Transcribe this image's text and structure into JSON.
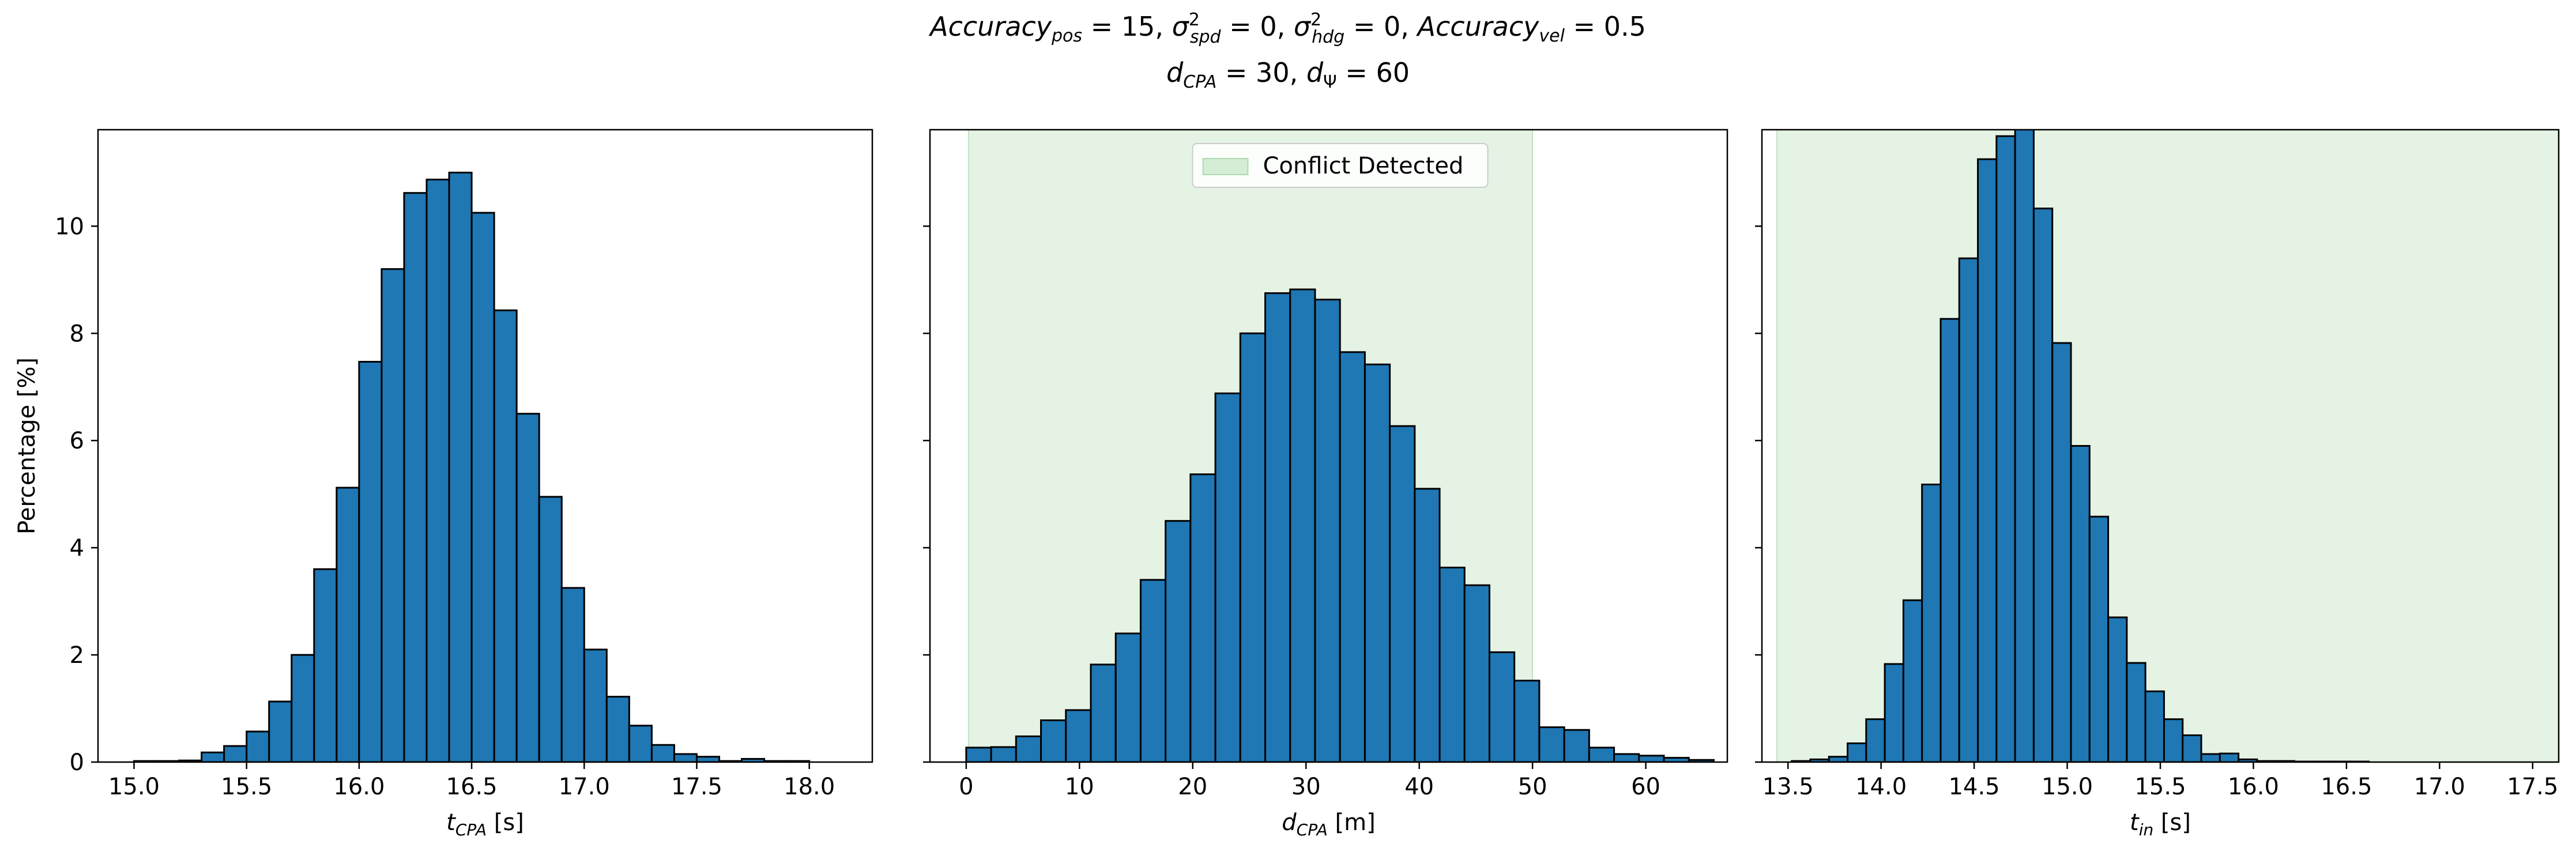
{
  "figure": {
    "title_line1": "Accuracy_pos = 15, σ²_spd = 0, σ²_hdg = 0, Accuracy_vel = 0.5",
    "title_line2": "d_CPA = 30, d_Ψ = 60"
  },
  "chart_data": [
    {
      "type": "bar",
      "subtype": "histogram",
      "xlabel": "t_CPA [s]",
      "ylabel": "Percentage [%]",
      "xlim": [
        14.84,
        18.28
      ],
      "ylim": [
        0,
        11.8
      ],
      "xticks": [
        15.0,
        15.5,
        16.0,
        16.5,
        17.0,
        17.5,
        18.0
      ],
      "xtick_labels": [
        "15.0",
        "15.5",
        "16.0",
        "16.5",
        "17.0",
        "17.5",
        "18.0"
      ],
      "yticks": [
        0,
        2,
        4,
        6,
        8,
        10
      ],
      "ytick_labels": [
        "0",
        "2",
        "4",
        "6",
        "8",
        "10"
      ],
      "bar_color": "#1f77b4",
      "edge_color": "#000000",
      "bin_edges": [
        15.0,
        15.1,
        15.2,
        15.3,
        15.4,
        15.5,
        15.6,
        15.7,
        15.8,
        15.9,
        16.0,
        16.1,
        16.2,
        16.3,
        16.4,
        16.5,
        16.6,
        16.7,
        16.8,
        16.9,
        17.0,
        17.1,
        17.2,
        17.3,
        17.4,
        17.5,
        17.6,
        17.7,
        17.8,
        17.9,
        18.0,
        18.1
      ],
      "values": [
        0.02,
        0.02,
        0.03,
        0.18,
        0.3,
        0.57,
        1.13,
        2.0,
        3.6,
        5.12,
        7.47,
        9.2,
        10.62,
        10.87,
        11.0,
        10.25,
        8.43,
        6.5,
        4.95,
        3.25,
        2.1,
        1.22,
        0.68,
        0.32,
        0.15,
        0.1,
        0.02,
        0.06,
        0.02,
        0.02,
        0.0
      ],
      "shaded_region": null,
      "legend": null
    },
    {
      "type": "bar",
      "subtype": "histogram",
      "xlabel": "d_CPA [m]",
      "ylabel": "",
      "xlim": [
        -3.2,
        67.2
      ],
      "ylim": [
        0,
        11.8
      ],
      "xticks": [
        0,
        10,
        20,
        30,
        40,
        50,
        60
      ],
      "xtick_labels": [
        "0",
        "10",
        "20",
        "30",
        "40",
        "50",
        "60"
      ],
      "yticks": [
        0,
        2,
        4,
        6,
        8,
        10
      ],
      "ytick_labels": [
        "",
        "",
        "",
        "",
        "",
        ""
      ],
      "bar_color": "#1f77b4",
      "edge_color": "#000000",
      "bin_edges": [
        0.0,
        2.2,
        4.4,
        6.6,
        8.8,
        11.0,
        13.2,
        15.4,
        17.6,
        19.8,
        22.0,
        24.2,
        26.4,
        28.6,
        30.8,
        33.0,
        35.2,
        37.4,
        39.6,
        41.8,
        44.0,
        46.2,
        48.4,
        50.6,
        52.8,
        55.0,
        57.2,
        59.4,
        61.6,
        63.8,
        66.0
      ],
      "values": [
        0.27,
        0.28,
        0.48,
        0.78,
        0.97,
        1.82,
        2.4,
        3.4,
        4.5,
        5.37,
        6.88,
        8.0,
        8.75,
        8.82,
        8.63,
        7.65,
        7.42,
        6.27,
        5.1,
        3.63,
        3.3,
        2.05,
        1.52,
        0.65,
        0.6,
        0.27,
        0.15,
        0.12,
        0.08,
        0.04
      ],
      "shaded_region": {
        "x0": 0.2,
        "x1": 50,
        "color": "#2ca02c",
        "opacity": 0.12
      },
      "legend": {
        "label": "Conflict Detected",
        "position": "upper center"
      }
    },
    {
      "type": "bar",
      "subtype": "histogram",
      "xlabel": "t_in [s]",
      "ylabel": "",
      "xlim": [
        13.36,
        17.64
      ],
      "ylim": [
        0,
        11.8
      ],
      "xticks": [
        13.5,
        14.0,
        14.5,
        15.0,
        15.5,
        16.0,
        16.5,
        17.0,
        17.5
      ],
      "xtick_labels": [
        "13.5",
        "14.0",
        "14.5",
        "15.0",
        "15.5",
        "16.0",
        "16.5",
        "17.0",
        "17.5"
      ],
      "yticks": [
        0,
        2,
        4,
        6,
        8,
        10
      ],
      "ytick_labels": [
        "",
        "",
        "",
        "",
        "",
        ""
      ],
      "bar_color": "#1f77b4",
      "edge_color": "#000000",
      "bin_edges": [
        13.52,
        13.62,
        13.72,
        13.82,
        13.92,
        14.02,
        14.12,
        14.22,
        14.32,
        14.42,
        14.52,
        14.62,
        14.72,
        14.82,
        14.92,
        15.02,
        15.12,
        15.22,
        15.32,
        15.42,
        15.52,
        15.62,
        15.72,
        15.82,
        15.92,
        16.02,
        16.12,
        16.22,
        16.32,
        16.42,
        16.52,
        16.62,
        16.72,
        16.82,
        16.92,
        17.02,
        17.12,
        17.22,
        17.32,
        17.42,
        17.52
      ],
      "values": [
        0.02,
        0.05,
        0.1,
        0.35,
        0.8,
        1.83,
        3.02,
        5.18,
        8.27,
        9.4,
        11.25,
        11.68,
        11.9,
        10.33,
        7.82,
        5.9,
        4.58,
        2.7,
        1.85,
        1.32,
        0.8,
        0.5,
        0.15,
        0.16,
        0.05,
        0.02,
        0.02,
        0.01,
        0.01,
        0.01,
        0.01,
        0.0,
        0.0,
        0.0,
        0.0,
        0.0,
        0.0,
        0.0,
        0.0,
        0.0
      ],
      "shaded_region": {
        "x0": 13.44,
        "x1": 17.64,
        "color": "#2ca02c",
        "opacity": 0.12
      },
      "legend": null
    }
  ]
}
